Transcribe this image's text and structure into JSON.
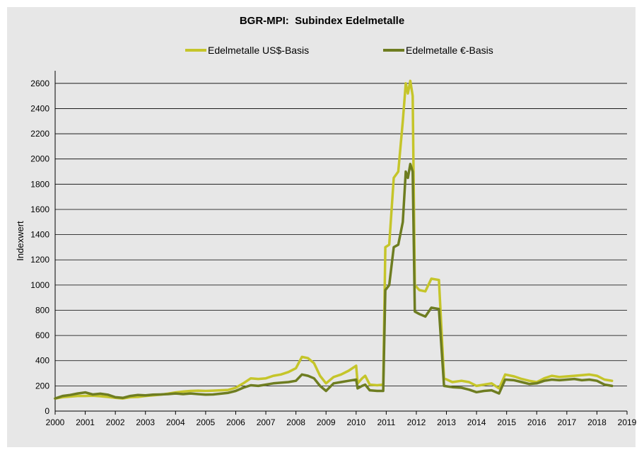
{
  "chart_data": {
    "type": "line",
    "title": "BGR-MPI:  Subindex Edelmetalle",
    "xlabel": "",
    "ylabel": "Indexwert",
    "xlim": [
      2000,
      2019
    ],
    "ylim": [
      0,
      2700
    ],
    "x_ticks": [
      "2000",
      "2001",
      "2002",
      "2003",
      "2004",
      "2005",
      "2006",
      "2007",
      "2008",
      "2009",
      "2010",
      "2011",
      "2012",
      "2013",
      "2014",
      "2015",
      "2016",
      "2017",
      "2018",
      "2019"
    ],
    "y_ticks": [
      "0",
      "200",
      "400",
      "600",
      "800",
      "1000",
      "1200",
      "1400",
      "1600",
      "1800",
      "2000",
      "2200",
      "2400",
      "2600"
    ],
    "grid": true,
    "legend_position": "top",
    "series": [
      {
        "name": "Edelmetalle US$-Basis",
        "color": "#c5c52a",
        "points": [
          [
            2000.0,
            100
          ],
          [
            2000.25,
            110
          ],
          [
            2000.5,
            115
          ],
          [
            2000.75,
            120
          ],
          [
            2001.0,
            120
          ],
          [
            2001.25,
            122
          ],
          [
            2001.5,
            118
          ],
          [
            2001.75,
            112
          ],
          [
            2002.0,
            105
          ],
          [
            2002.25,
            100
          ],
          [
            2002.5,
            110
          ],
          [
            2002.75,
            112
          ],
          [
            2003.0,
            120
          ],
          [
            2003.25,
            125
          ],
          [
            2003.5,
            130
          ],
          [
            2003.75,
            138
          ],
          [
            2004.0,
            148
          ],
          [
            2004.25,
            155
          ],
          [
            2004.5,
            160
          ],
          [
            2004.75,
            162
          ],
          [
            2005.0,
            160
          ],
          [
            2005.25,
            162
          ],
          [
            2005.5,
            165
          ],
          [
            2005.75,
            168
          ],
          [
            2006.0,
            185
          ],
          [
            2006.25,
            220
          ],
          [
            2006.5,
            260
          ],
          [
            2006.75,
            255
          ],
          [
            2007.0,
            260
          ],
          [
            2007.25,
            280
          ],
          [
            2007.5,
            290
          ],
          [
            2007.75,
            310
          ],
          [
            2008.0,
            340
          ],
          [
            2008.2,
            430
          ],
          [
            2008.4,
            420
          ],
          [
            2008.6,
            380
          ],
          [
            2008.8,
            280
          ],
          [
            2009.0,
            220
          ],
          [
            2009.25,
            270
          ],
          [
            2009.5,
            290
          ],
          [
            2009.75,
            320
          ],
          [
            2010.0,
            360
          ],
          [
            2010.05,
            220
          ],
          [
            2010.2,
            260
          ],
          [
            2010.3,
            280
          ],
          [
            2010.45,
            210
          ],
          [
            2010.7,
            205
          ],
          [
            2010.9,
            210
          ],
          [
            2010.97,
            1300
          ],
          [
            2011.1,
            1320
          ],
          [
            2011.25,
            1850
          ],
          [
            2011.4,
            1900
          ],
          [
            2011.55,
            2300
          ],
          [
            2011.65,
            2600
          ],
          [
            2011.72,
            2520
          ],
          [
            2011.8,
            2620
          ],
          [
            2011.88,
            2500
          ],
          [
            2011.95,
            1000
          ],
          [
            2012.1,
            960
          ],
          [
            2012.3,
            950
          ],
          [
            2012.5,
            1050
          ],
          [
            2012.75,
            1040
          ],
          [
            2012.92,
            260
          ],
          [
            2013.2,
            230
          ],
          [
            2013.5,
            240
          ],
          [
            2013.75,
            230
          ],
          [
            2014.0,
            200
          ],
          [
            2014.25,
            210
          ],
          [
            2014.5,
            220
          ],
          [
            2014.75,
            180
          ],
          [
            2014.95,
            290
          ],
          [
            2015.25,
            275
          ],
          [
            2015.5,
            255
          ],
          [
            2015.75,
            240
          ],
          [
            2016.0,
            230
          ],
          [
            2016.25,
            260
          ],
          [
            2016.5,
            280
          ],
          [
            2016.75,
            270
          ],
          [
            2017.0,
            275
          ],
          [
            2017.25,
            280
          ],
          [
            2017.5,
            285
          ],
          [
            2017.75,
            290
          ],
          [
            2018.0,
            280
          ],
          [
            2018.25,
            250
          ],
          [
            2018.5,
            240
          ]
        ]
      },
      {
        "name": "Edelmetalle €-Basis",
        "color": "#6e7d21",
        "points": [
          [
            2000.0,
            100
          ],
          [
            2000.25,
            120
          ],
          [
            2000.5,
            128
          ],
          [
            2000.75,
            140
          ],
          [
            2001.0,
            148
          ],
          [
            2001.25,
            132
          ],
          [
            2001.5,
            138
          ],
          [
            2001.75,
            130
          ],
          [
            2002.0,
            110
          ],
          [
            2002.25,
            105
          ],
          [
            2002.5,
            120
          ],
          [
            2002.75,
            128
          ],
          [
            2003.0,
            125
          ],
          [
            2003.25,
            130
          ],
          [
            2003.5,
            132
          ],
          [
            2003.75,
            135
          ],
          [
            2004.0,
            140
          ],
          [
            2004.25,
            135
          ],
          [
            2004.5,
            140
          ],
          [
            2004.75,
            135
          ],
          [
            2005.0,
            130
          ],
          [
            2005.25,
            132
          ],
          [
            2005.5,
            138
          ],
          [
            2005.75,
            145
          ],
          [
            2006.0,
            160
          ],
          [
            2006.25,
            185
          ],
          [
            2006.5,
            205
          ],
          [
            2006.75,
            200
          ],
          [
            2007.0,
            210
          ],
          [
            2007.25,
            220
          ],
          [
            2007.5,
            225
          ],
          [
            2007.75,
            230
          ],
          [
            2008.0,
            240
          ],
          [
            2008.2,
            290
          ],
          [
            2008.4,
            280
          ],
          [
            2008.6,
            260
          ],
          [
            2008.8,
            200
          ],
          [
            2009.0,
            160
          ],
          [
            2009.25,
            220
          ],
          [
            2009.5,
            230
          ],
          [
            2009.75,
            240
          ],
          [
            2010.0,
            250
          ],
          [
            2010.05,
            180
          ],
          [
            2010.2,
            200
          ],
          [
            2010.3,
            210
          ],
          [
            2010.45,
            165
          ],
          [
            2010.7,
            160
          ],
          [
            2010.9,
            160
          ],
          [
            2010.97,
            960
          ],
          [
            2011.1,
            1000
          ],
          [
            2011.25,
            1300
          ],
          [
            2011.4,
            1320
          ],
          [
            2011.55,
            1500
          ],
          [
            2011.65,
            1900
          ],
          [
            2011.72,
            1850
          ],
          [
            2011.8,
            1960
          ],
          [
            2011.88,
            1900
          ],
          [
            2011.95,
            790
          ],
          [
            2012.1,
            770
          ],
          [
            2012.3,
            750
          ],
          [
            2012.5,
            820
          ],
          [
            2012.75,
            810
          ],
          [
            2012.92,
            200
          ],
          [
            2013.2,
            190
          ],
          [
            2013.5,
            185
          ],
          [
            2013.75,
            170
          ],
          [
            2014.0,
            150
          ],
          [
            2014.25,
            160
          ],
          [
            2014.5,
            165
          ],
          [
            2014.75,
            140
          ],
          [
            2014.95,
            250
          ],
          [
            2015.25,
            245
          ],
          [
            2015.5,
            230
          ],
          [
            2015.75,
            215
          ],
          [
            2016.0,
            220
          ],
          [
            2016.25,
            240
          ],
          [
            2016.5,
            250
          ],
          [
            2016.75,
            245
          ],
          [
            2017.0,
            250
          ],
          [
            2017.25,
            255
          ],
          [
            2017.5,
            245
          ],
          [
            2017.75,
            250
          ],
          [
            2018.0,
            240
          ],
          [
            2018.25,
            210
          ],
          [
            2018.5,
            200
          ]
        ]
      }
    ]
  }
}
